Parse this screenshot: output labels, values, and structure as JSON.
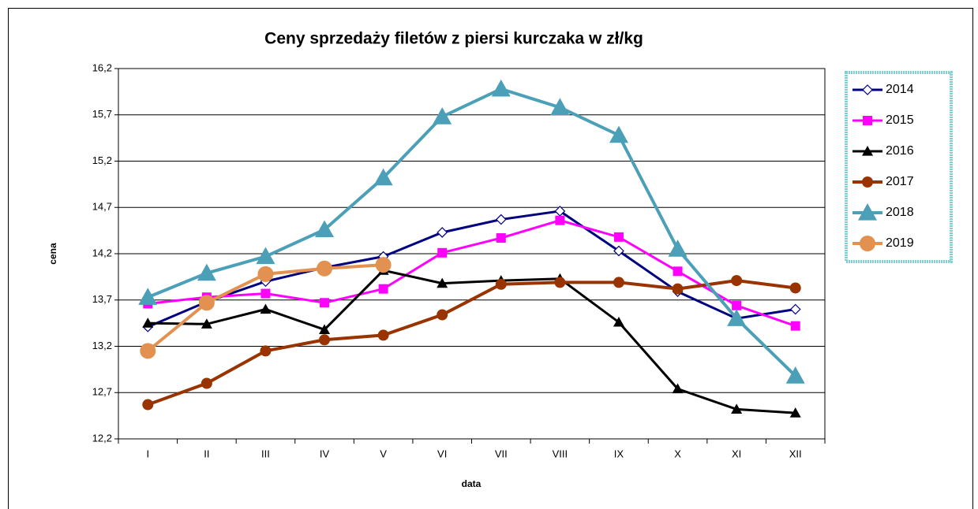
{
  "chart_data": {
    "type": "line",
    "title": "Ceny sprzedaży filetów z piersi kurczaka w zł/kg",
    "x_label": "data",
    "y_label": "cena",
    "categories": [
      "I",
      "II",
      "III",
      "IV",
      "V",
      "VI",
      "VII",
      "VIII",
      "IX",
      "X",
      "XI",
      "XII"
    ],
    "ylim": [
      12.2,
      16.2
    ],
    "yticks": [
      {
        "value": 12.2,
        "label": "12,2"
      },
      {
        "value": 12.7,
        "label": "12,7"
      },
      {
        "value": 13.2,
        "label": "13,2"
      },
      {
        "value": 13.7,
        "label": "13,7"
      },
      {
        "value": 14.2,
        "label": "14,2"
      },
      {
        "value": 14.7,
        "label": "14,7"
      },
      {
        "value": 15.2,
        "label": "15,2"
      },
      {
        "value": 15.7,
        "label": "15,7"
      },
      {
        "value": 16.2,
        "label": "16,2"
      }
    ],
    "grid": true,
    "series": [
      {
        "name": "2014",
        "color": "#000080",
        "marker": "diamond-open",
        "values": [
          13.41,
          13.68,
          13.9,
          14.05,
          14.17,
          14.43,
          14.57,
          14.66,
          14.23,
          13.79,
          13.5,
          13.6
        ]
      },
      {
        "name": "2015",
        "color": "#FF00FF",
        "marker": "square",
        "values": [
          13.66,
          13.73,
          13.77,
          13.67,
          13.82,
          14.21,
          14.37,
          14.56,
          14.38,
          14.01,
          13.64,
          13.42
        ]
      },
      {
        "name": "2016",
        "color": "#000000",
        "marker": "triangle",
        "values": [
          13.45,
          13.44,
          13.6,
          13.38,
          14.02,
          13.88,
          13.91,
          13.93,
          13.46,
          12.74,
          12.52,
          12.48
        ]
      },
      {
        "name": "2017",
        "color": "#993300",
        "marker": "circle",
        "values": [
          12.57,
          12.8,
          13.15,
          13.27,
          13.32,
          13.54,
          13.87,
          13.89,
          13.89,
          13.82,
          13.91,
          13.83
        ]
      },
      {
        "name": "2018",
        "color": "#4BA0B8",
        "marker": "triangle-big",
        "values": [
          13.73,
          13.99,
          14.17,
          14.46,
          15.02,
          15.68,
          15.98,
          15.78,
          15.48,
          14.25,
          13.5,
          12.88
        ]
      },
      {
        "name": "2019",
        "color": "#E39150",
        "marker": "circle-big",
        "values": [
          13.15,
          13.67,
          13.98,
          14.04,
          14.08,
          null,
          null,
          null,
          null,
          null,
          null,
          null
        ]
      }
    ]
  }
}
